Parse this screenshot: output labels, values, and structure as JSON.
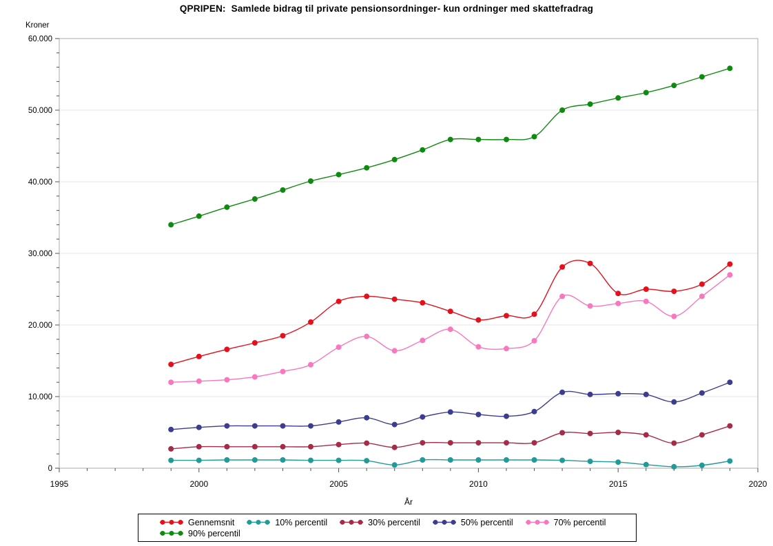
{
  "title": "QPRIPEN:  Samlede bidrag til private pensionsordninger- kun ordninger med skattefradrag",
  "chart_data": {
    "type": "line",
    "title": "QPRIPEN:  Samlede bidrag til private pensionsordninger- kun ordninger med skattefradrag",
    "xlabel": "År",
    "ylabel": "Kroner",
    "xlim": [
      1995,
      2020
    ],
    "ylim": [
      0,
      60000
    ],
    "x_major_ticks": [
      1995,
      2000,
      2005,
      2010,
      2015,
      2020
    ],
    "x_minor_step": 1,
    "y_major_step": 10000,
    "y_minor_step": 2000,
    "grid": "horizontal-major-only",
    "legend_position": "bottom",
    "marker": "filled-circle",
    "x": [
      1999,
      2000,
      2001,
      2002,
      2003,
      2004,
      2005,
      2006,
      2007,
      2008,
      2009,
      2010,
      2011,
      2012,
      2013,
      2014,
      2015,
      2016,
      2017,
      2018,
      2019
    ],
    "series": [
      {
        "name": "Gennemsnit",
        "color": "#e4101c",
        "values": [
          14500,
          15600,
          16600,
          17500,
          18500,
          20400,
          23300,
          24000,
          23600,
          23100,
          21900,
          20700,
          21300,
          21500,
          28100,
          28600,
          24400,
          25000,
          24700,
          25700,
          28500
        ]
      },
      {
        "name": "10% percentil",
        "color": "#219a98",
        "values": [
          1100,
          1100,
          1150,
          1150,
          1150,
          1100,
          1100,
          1050,
          450,
          1150,
          1150,
          1150,
          1150,
          1150,
          1100,
          950,
          850,
          500,
          200,
          400,
          1000
        ]
      },
      {
        "name": "30% percentil",
        "color": "#a52c48",
        "values": [
          2700,
          3000,
          3000,
          3000,
          3000,
          3000,
          3300,
          3500,
          2900,
          3550,
          3550,
          3550,
          3550,
          3550,
          4950,
          4850,
          5000,
          4650,
          3500,
          4650,
          5900
        ]
      },
      {
        "name": "50% percentil",
        "color": "#3d3d8f",
        "values": [
          5400,
          5700,
          5900,
          5900,
          5900,
          5900,
          6450,
          7050,
          6100,
          7150,
          7850,
          7500,
          7250,
          7900,
          10600,
          10300,
          10400,
          10300,
          9250,
          10500,
          12000
        ]
      },
      {
        "name": "70% percentil",
        "color": "#f878be",
        "values": [
          12000,
          12150,
          12350,
          12750,
          13500,
          14450,
          16900,
          18400,
          16400,
          17850,
          19400,
          16950,
          16700,
          17800,
          24000,
          22650,
          23000,
          23300,
          21200,
          24000,
          27000
        ]
      },
      {
        "name": "90% percentil",
        "color": "#0f8a10",
        "values": [
          34000,
          35200,
          36450,
          37600,
          38850,
          40100,
          41000,
          41950,
          43100,
          44450,
          45900,
          45900,
          45900,
          46300,
          50000,
          50850,
          51700,
          52450,
          53450,
          54650,
          55850
        ]
      }
    ],
    "colors": {
      "frame": "#a8a8a8",
      "grid": "#e4e4e4",
      "tick": "#4d4d4d",
      "text": "#000000"
    }
  }
}
